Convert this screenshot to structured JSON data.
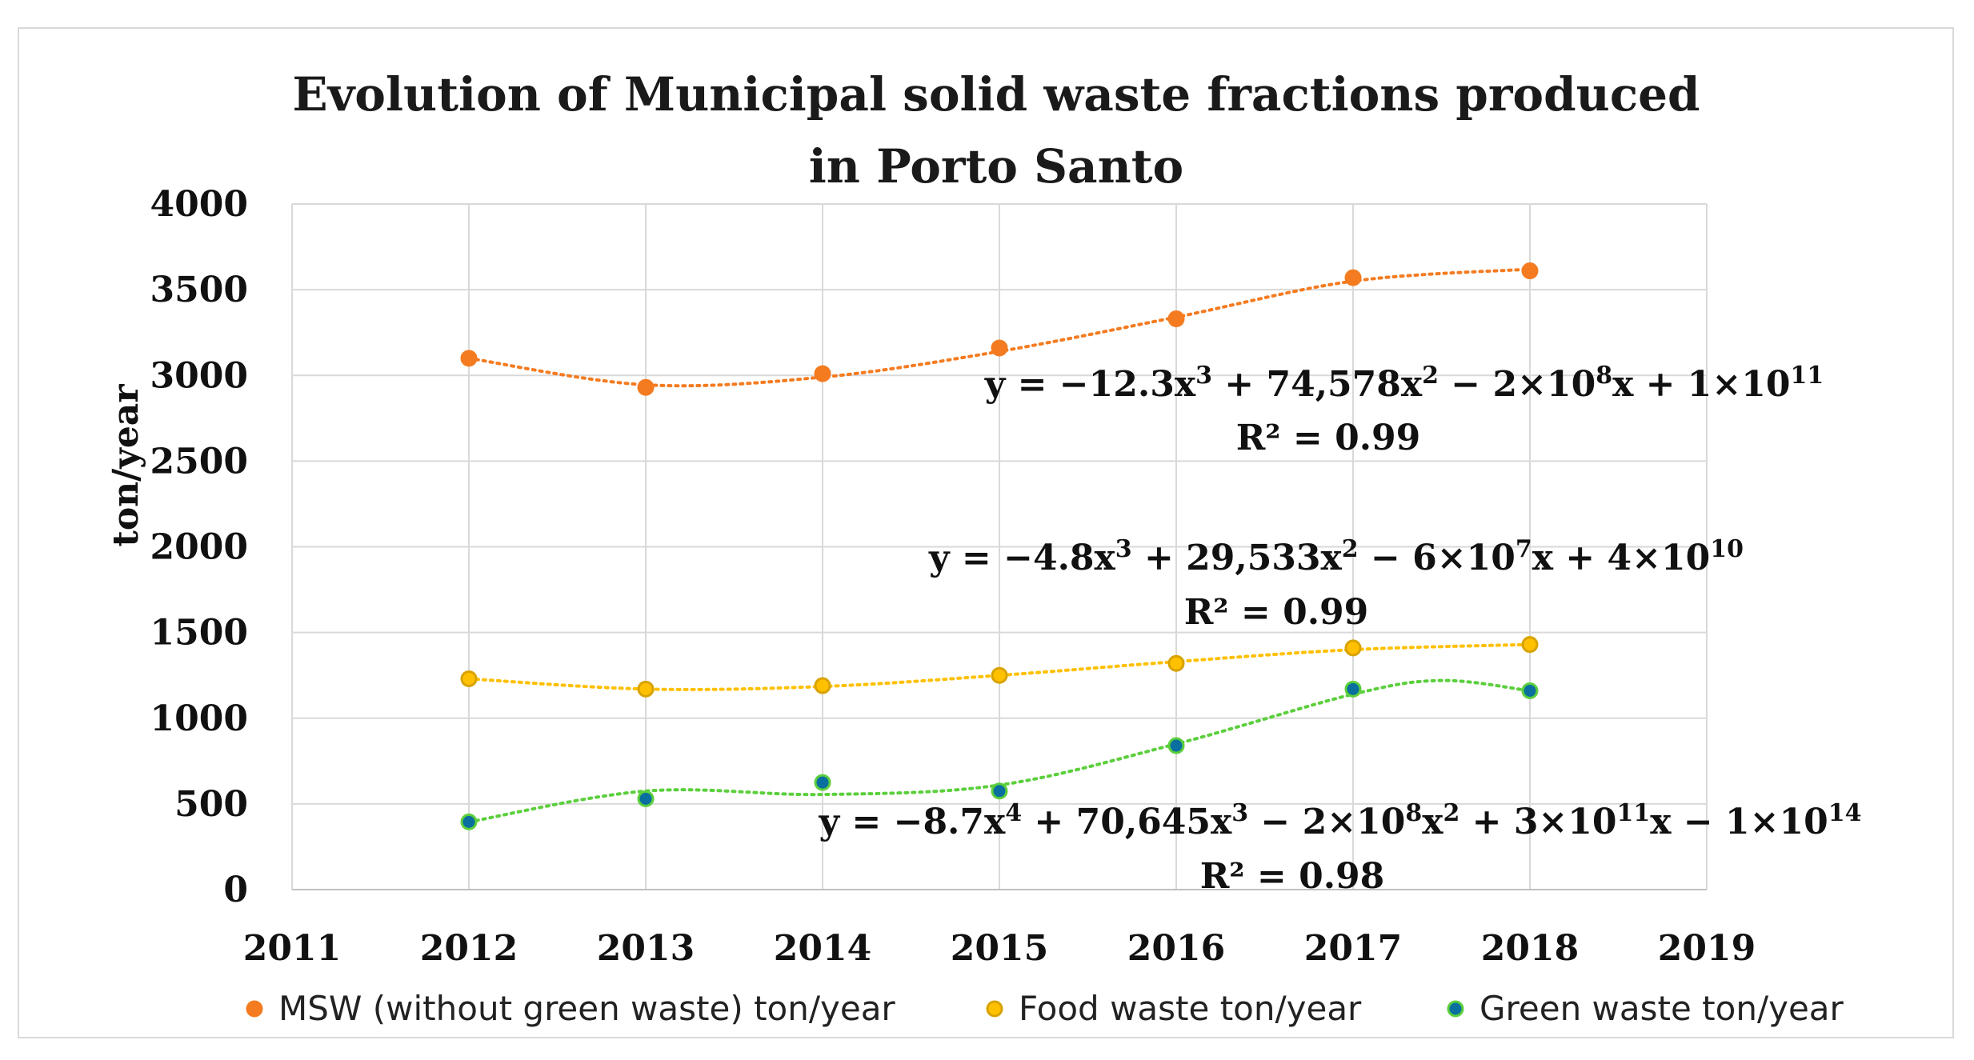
{
  "chart_data": {
    "type": "scatter",
    "title_line1": "Evolution of Municipal solid waste fractions produced",
    "title_line2": "in Porto Santo",
    "ylabel": "ton/year",
    "xlabel": "",
    "xlim": [
      2011,
      2019
    ],
    "ylim": [
      0,
      4000
    ],
    "xticks": [
      "2011",
      "2012",
      "2013",
      "2014",
      "2015",
      "2016",
      "2017",
      "2018",
      "2019"
    ],
    "yticks": [
      "0",
      "500",
      "1000",
      "1500",
      "2000",
      "2500",
      "3000",
      "3500",
      "4000"
    ],
    "grid": true,
    "legend_position": "bottom",
    "x": [
      2012,
      2013,
      2014,
      2015,
      2016,
      2017,
      2018
    ],
    "series": [
      {
        "name": "MSW (without green waste) ton/year",
        "color": "#f47b20",
        "edge": "#f47b20",
        "values": [
          3100,
          2930,
          3010,
          3160,
          3330,
          3570,
          3610
        ],
        "trend": [
          3100,
          2945,
          2990,
          3140,
          3340,
          3550,
          3620
        ],
        "equation": {
          "parts": [
            {
              "t": "y = −12.3x"
            },
            {
              "t": "3",
              "sup": true
            },
            {
              "t": " + 74,578x"
            },
            {
              "t": "2",
              "sup": true
            },
            {
              "t": " − 2×10"
            },
            {
              "t": "8",
              "sup": true
            },
            {
              "t": "x + 1×10"
            },
            {
              "t": "11",
              "sup": true
            }
          ],
          "r2": "R² = 0.99"
        }
      },
      {
        "name": "Food waste ton/year",
        "color": "#ffc000",
        "edge": "#d8a300",
        "values": [
          1230,
          1170,
          1190,
          1250,
          1320,
          1410,
          1430
        ],
        "trend": [
          1230,
          1170,
          1185,
          1250,
          1330,
          1400,
          1430
        ],
        "equation": {
          "parts": [
            {
              "t": "y = −4.8x"
            },
            {
              "t": "3",
              "sup": true
            },
            {
              "t": " + 29,533x"
            },
            {
              "t": "2",
              "sup": true
            },
            {
              "t": " − 6×10"
            },
            {
              "t": "7",
              "sup": true
            },
            {
              "t": "x + 4×10"
            },
            {
              "t": "10",
              "sup": true
            }
          ],
          "r2": "R² = 0.99"
        }
      },
      {
        "name": "Green waste ton/year",
        "color": "#0a6e9e",
        "edge": "#5bcf3c",
        "trend_color": "#5bcf3c",
        "values": [
          395,
          530,
          625,
          575,
          840,
          1170,
          1160
        ],
        "trend": [
          395,
          575,
          555,
          610,
          850,
          1140,
          1160
        ],
        "trend_extra": {
          "x": 2017.5,
          "y": 1220
        },
        "equation": {
          "parts": [
            {
              "t": "y = −8.7x"
            },
            {
              "t": "4",
              "sup": true
            },
            {
              "t": " + 70,645x"
            },
            {
              "t": "3",
              "sup": true
            },
            {
              "t": " − 2×10"
            },
            {
              "t": "8",
              "sup": true
            },
            {
              "t": "x"
            },
            {
              "t": "2",
              "sup": true
            },
            {
              "t": " + 3×10"
            },
            {
              "t": "11",
              "sup": true
            },
            {
              "t": "x − 1×10"
            },
            {
              "t": "14",
              "sup": true
            }
          ],
          "r2": "R² = 0.98"
        }
      }
    ]
  }
}
